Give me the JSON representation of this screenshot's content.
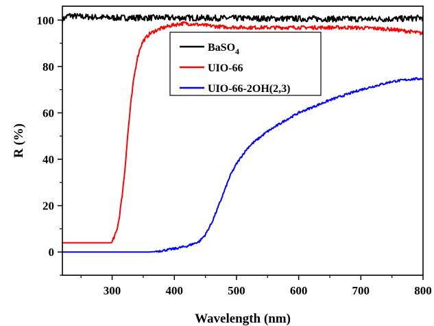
{
  "chart_data": {
    "type": "line",
    "title": "",
    "xlabel": "Wavelength (nm)",
    "ylabel": "R (%)",
    "xlim": [
      220,
      800
    ],
    "ylim": [
      -10,
      106
    ],
    "xticks": [
      300,
      400,
      500,
      600,
      700,
      800
    ],
    "yticks": [
      0,
      20,
      40,
      60,
      80,
      100
    ],
    "grid": false,
    "legend_position": "top-right",
    "series": [
      {
        "name": "BaSO4",
        "color": "#000000",
        "noise": 1.3,
        "x": [
          220,
          230,
          250,
          300,
          400,
          500,
          600,
          700,
          760,
          800
        ],
        "y": [
          100.2,
          102.0,
          101.5,
          101.0,
          101.0,
          100.8,
          100.6,
          100.5,
          100.5,
          101.0
        ]
      },
      {
        "name": "UIO-66",
        "color": "#ff0000",
        "noise": 0.8,
        "x": [
          220,
          299,
          303,
          307,
          311,
          315,
          320,
          325,
          330,
          335,
          340,
          345,
          350,
          360,
          370,
          380,
          390,
          400,
          415,
          430,
          450,
          480,
          520,
          600,
          680,
          720,
          750,
          780,
          800
        ],
        "y": [
          4,
          4,
          6,
          9,
          14,
          22,
          34,
          50,
          64,
          75,
          83,
          88,
          91,
          94,
          95.5,
          96.5,
          97.3,
          98,
          98.6,
          98.3,
          97.7,
          97,
          96.8,
          96.8,
          96.8,
          96.5,
          96,
          95,
          94.2
        ]
      },
      {
        "name": "UIO-66-2OH(2,3)",
        "color": "#0000ff",
        "noise": 0.5,
        "x": [
          220,
          360,
          370,
          380,
          400,
          420,
          440,
          450,
          460,
          470,
          480,
          490,
          500,
          510,
          520,
          530,
          550,
          580,
          600,
          650,
          700,
          750,
          780,
          800
        ],
        "y": [
          0,
          0,
          0.2,
          0.6,
          1.4,
          2.5,
          4.5,
          7.5,
          12.5,
          19,
          26,
          33,
          38,
          42,
          45.5,
          47.8,
          52,
          57,
          60,
          65.5,
          70,
          73.5,
          74.5,
          74.8
        ]
      }
    ]
  }
}
